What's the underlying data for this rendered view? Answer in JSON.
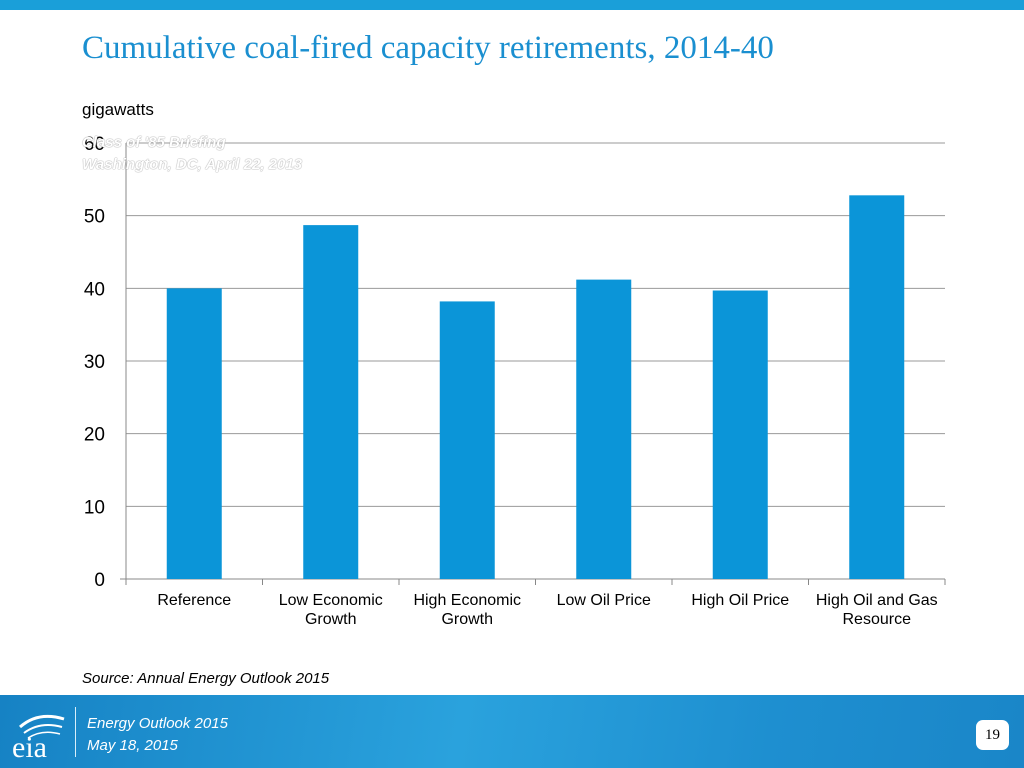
{
  "slide": {
    "title": "Cumulative coal-fired capacity retirements, 2014-40",
    "unit_label": "gigawatts",
    "watermark_line1": "Class of '85 Briefing",
    "watermark_line2": "Washington, DC, April 22, 2013",
    "source": "Source:  Annual Energy Outlook 2015"
  },
  "footer": {
    "logo_text": "eia",
    "line1": "Energy  Outlook 2015",
    "line2": "May 18, 2015",
    "page_number": "19"
  },
  "colors": {
    "accent": "#1a9fd9",
    "title": "#1a8fd0",
    "bar": "#0b95d8",
    "gridline": "#999999"
  },
  "chart_data": {
    "type": "bar",
    "title": "Cumulative coal-fired capacity retirements, 2014-40",
    "ylabel": "gigawatts",
    "xlabel": "",
    "ylim": [
      0,
      60
    ],
    "yticks": [
      0,
      10,
      20,
      30,
      40,
      50,
      60
    ],
    "grid": true,
    "legend": "none",
    "categories": [
      [
        "Reference"
      ],
      [
        "Low Economic",
        "Growth"
      ],
      [
        "High Economic",
        "Growth"
      ],
      [
        "Low Oil Price"
      ],
      [
        "High Oil Price"
      ],
      [
        "High Oil and Gas",
        "Resource"
      ]
    ],
    "values": [
      40.0,
      48.7,
      38.2,
      41.2,
      39.7,
      52.8
    ]
  }
}
